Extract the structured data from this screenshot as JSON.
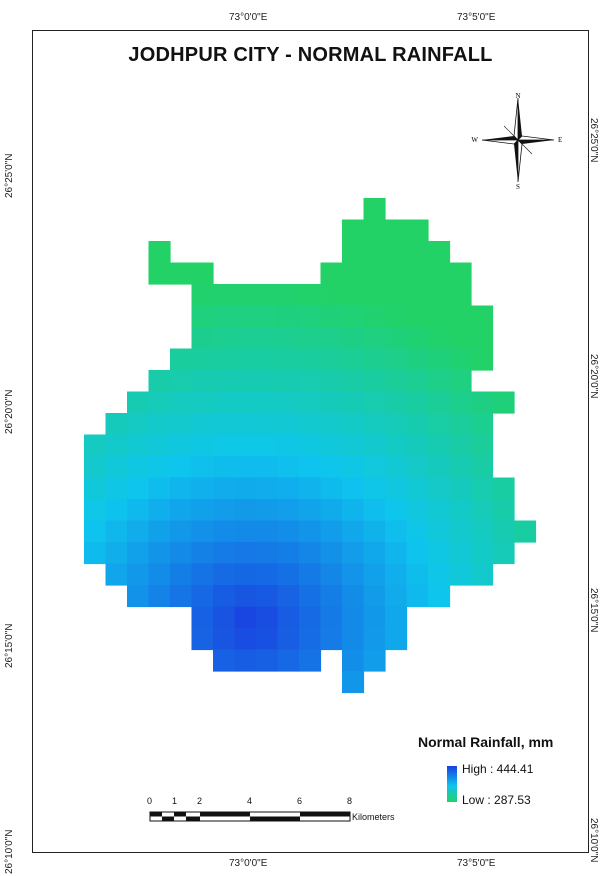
{
  "map": {
    "title": "JODHPUR CITY -  NORMAL RAINFALL",
    "top_ticks": [
      "73°0'0\"E",
      "73°5'0\"E"
    ],
    "bottom_ticks": [
      "73°0'0\"E",
      "73°5'0\"E"
    ],
    "left_ticks": [
      "26°25'0\"N",
      "26°20'0\"N",
      "26°15'0\"N",
      "26°10'0\"N"
    ],
    "right_ticks": [
      "26°25'0\"N",
      "26°20'0\"N",
      "26°15'0\"N",
      "26°10'0\"N"
    ],
    "north_arrow": {
      "n": "N",
      "s": "S",
      "e": "E",
      "w": "W"
    },
    "legend": {
      "title": "Normal Rainfall, mm",
      "high": "High : 444.41",
      "low": "Low : 287.53",
      "high_color": "#1a3fe0",
      "mid_color": "#0ec4ee",
      "low_color": "#22d266"
    },
    "scale_bar": {
      "ticks": [
        "0",
        "1",
        "2",
        "4",
        "6",
        "8"
      ],
      "unit": "Kilometers"
    },
    "rainfall_range_mm": [
      287.53,
      444.41
    ]
  }
}
